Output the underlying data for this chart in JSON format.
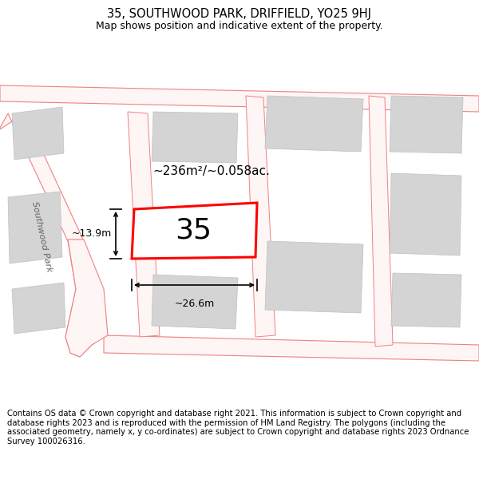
{
  "title": "35, SOUTHWOOD PARK, DRIFFIELD, YO25 9HJ",
  "subtitle": "Map shows position and indicative extent of the property.",
  "footer": "Contains OS data © Crown copyright and database right 2021. This information is subject to Crown copyright and database rights 2023 and is reproduced with the permission of HM Land Registry. The polygons (including the associated geometry, namely x, y co-ordinates) are subject to Crown copyright and database rights 2023 Ordnance Survey 100026316.",
  "area_label": "~236m²/~0.058ac.",
  "width_label": "~26.6m",
  "height_label": "~13.9m",
  "number_label": "35",
  "road_label": "Southwood Park",
  "bg_color": "#ffffff",
  "map_bg": "#ffffff",
  "building_color": "#d4d4d4",
  "road_line_color": "#f08080",
  "highlight_color": "#ff0000",
  "title_fontsize": 10.5,
  "subtitle_fontsize": 9,
  "footer_fontsize": 7.2,
  "figsize": [
    6.0,
    6.25
  ],
  "dpi": 100
}
